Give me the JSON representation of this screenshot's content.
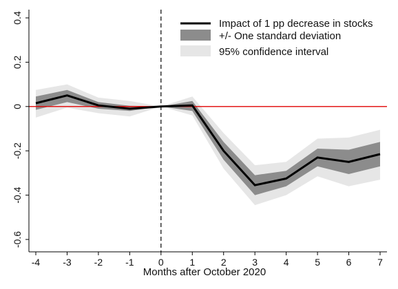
{
  "chart_data": {
    "type": "line",
    "title": "",
    "xlabel": "Months after October 2020",
    "ylabel": "",
    "xlim": [
      -4,
      7
    ],
    "ylim": [
      -0.6,
      0.4
    ],
    "x": [
      -4,
      -3,
      -2,
      -1,
      0,
      1,
      2,
      3,
      4,
      5,
      6,
      7
    ],
    "x_ticks": [
      "-4",
      "-3",
      "-2",
      "-1",
      "0",
      "1",
      "2",
      "3",
      "4",
      "5",
      "6",
      "7"
    ],
    "y_ticks": [
      "-0.6",
      "-0.4",
      "-0.2",
      "0",
      "0.2",
      "0.4"
    ],
    "y_tick_values": [
      -0.6,
      -0.4,
      -0.2,
      0,
      0.2,
      0.4
    ],
    "series": [
      {
        "name": "Impact of 1 pp decrease in stocks",
        "values": [
          0.015,
          0.05,
          0.005,
          -0.01,
          0.0,
          0.005,
          -0.2,
          -0.355,
          -0.325,
          -0.23,
          -0.25,
          -0.215
        ]
      },
      {
        "name": "+/- One standard deviation",
        "lower": [
          -0.015,
          0.02,
          -0.01,
          -0.02,
          0.0,
          -0.02,
          -0.24,
          -0.4,
          -0.36,
          -0.27,
          -0.305,
          -0.27
        ],
        "upper": [
          0.045,
          0.075,
          0.02,
          0.003,
          0.0,
          0.025,
          -0.16,
          -0.31,
          -0.29,
          -0.19,
          -0.195,
          -0.16
        ]
      },
      {
        "name": "95% confidence interval",
        "lower": [
          -0.05,
          -0.005,
          -0.03,
          -0.045,
          0.0,
          -0.04,
          -0.28,
          -0.445,
          -0.4,
          -0.315,
          -0.36,
          -0.33
        ],
        "upper": [
          0.075,
          0.1,
          0.04,
          0.025,
          0.0,
          0.045,
          -0.12,
          -0.265,
          -0.25,
          -0.145,
          -0.14,
          -0.105
        ]
      }
    ],
    "reference_lines": {
      "horizontal_zero": "red",
      "vertical_at_x": 0
    },
    "colors": {
      "line": "#000000",
      "sd_band": "#8c8c8c",
      "ci_band": "#e6e6e6",
      "zero_line": "#e00000"
    },
    "legend_position": "top-right",
    "grid": false
  }
}
